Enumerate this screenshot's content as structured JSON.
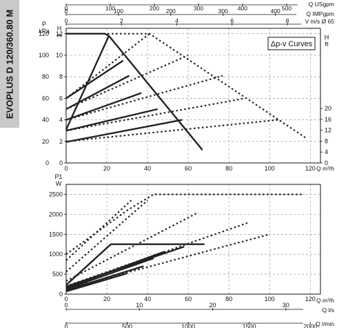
{
  "side_label": "EVOPLUS D 120/360.80 M",
  "legend_label": "Δp-v Curves",
  "chart_data": [
    {
      "type": "line",
      "name": "head",
      "x_unit_label": "Q m³/h",
      "x_range": [
        0,
        125
      ],
      "x_ticks": [
        0,
        20,
        40,
        60,
        80,
        100,
        120
      ],
      "y_label_left": "P kPa",
      "y_label_left2": "H m",
      "y_range_kpa": [
        0,
        125
      ],
      "y_ticks_kpa": [
        0,
        20,
        40,
        60,
        80,
        100,
        120
      ],
      "y_ticks_m": [
        0,
        2,
        4,
        6,
        8,
        10,
        12
      ],
      "y_label_right": "H ft",
      "y_ticks_ft": [
        0,
        4,
        8,
        12,
        16,
        20
      ],
      "top_axes": [
        {
          "label": "Q USgpm",
          "ticks": [
            0,
            100,
            200,
            300,
            400,
            500
          ]
        },
        {
          "label": "Q IMPgpm",
          "ticks": [
            0,
            100,
            200,
            300,
            400
          ]
        },
        {
          "label": "V m/s Ø 65",
          "ticks": [
            0,
            2,
            4,
            6,
            8
          ]
        }
      ],
      "series": [
        {
          "style": "solid",
          "points": [
            [
              0,
              19.5
            ],
            [
              57,
              40
            ]
          ]
        },
        {
          "style": "solid",
          "points": [
            [
              0,
              30
            ],
            [
              45,
              50
            ]
          ]
        },
        {
          "style": "solid",
          "points": [
            [
              0,
              40
            ],
            [
              37,
              65
            ]
          ]
        },
        {
          "style": "solid",
          "points": [
            [
              0,
              50
            ],
            [
              31,
              81
            ]
          ]
        },
        {
          "style": "solid",
          "points": [
            [
              0,
              60
            ],
            [
              28,
              95
            ]
          ]
        },
        {
          "style": "solid",
          "points": [
            [
              0,
              120
            ],
            [
              19,
              120
            ],
            [
              21,
              118
            ],
            [
              67,
              12
            ]
          ]
        },
        {
          "style": "solid",
          "points": [
            [
              0,
              31
            ],
            [
              21,
              118
            ]
          ]
        },
        {
          "style": "dotted",
          "points": [
            [
              0,
              20
            ],
            [
              104,
              40
            ]
          ]
        },
        {
          "style": "dotted",
          "points": [
            [
              0,
              30
            ],
            [
              88,
              60
            ]
          ]
        },
        {
          "style": "dotted",
          "points": [
            [
              0,
              40
            ],
            [
              77,
              81
            ]
          ]
        },
        {
          "style": "dotted",
          "points": [
            [
              0,
              50
            ],
            [
              60,
              100
            ]
          ]
        },
        {
          "style": "dotted",
          "points": [
            [
              0,
              60
            ],
            [
              41,
              120
            ]
          ]
        },
        {
          "style": "dotted",
          "points": [
            [
              0,
              120
            ],
            [
              41,
              120
            ],
            [
              118,
              23
            ]
          ]
        }
      ]
    },
    {
      "type": "line",
      "name": "power",
      "y_label": "P1 W",
      "x_unit_label": "Q m³/h",
      "x_range": [
        0,
        125
      ],
      "x_ticks": [
        0,
        20,
        40,
        60,
        80,
        100,
        120
      ],
      "y_range": [
        0,
        2750
      ],
      "y_ticks": [
        0,
        500,
        1000,
        1500,
        2000,
        2500
      ],
      "bottom_axes": [
        {
          "label": "Q l/s",
          "ticks": [
            0,
            10,
            20,
            30
          ]
        },
        {
          "label": "Q l/min",
          "ticks": [
            0,
            500,
            1000,
            1500,
            2000
          ]
        }
      ],
      "series": [
        {
          "style": "solid",
          "points": [
            [
              0,
              70
            ],
            [
              30,
              520
            ]
          ]
        },
        {
          "style": "solid",
          "points": [
            [
              0,
              100
            ],
            [
              38,
              700
            ]
          ]
        },
        {
          "style": "solid",
          "points": [
            [
              0,
              130
            ],
            [
              43,
              900
            ]
          ]
        },
        {
          "style": "solid",
          "points": [
            [
              0,
              160
            ],
            [
              48,
              1060
            ]
          ]
        },
        {
          "style": "solid",
          "points": [
            [
              0,
              190
            ],
            [
              58,
              1190
            ]
          ]
        },
        {
          "style": "solid",
          "points": [
            [
              0,
              230
            ],
            [
              22,
              1250
            ],
            [
              68,
              1250
            ]
          ]
        },
        {
          "style": "dotted",
          "points": [
            [
              0,
              130
            ],
            [
              100,
              1500
            ]
          ]
        },
        {
          "style": "dotted",
          "points": [
            [
              0,
              200
            ],
            [
              90,
              1800
            ]
          ]
        },
        {
          "style": "dotted",
          "points": [
            [
              0,
              330
            ],
            [
              65,
              2050
            ]
          ]
        },
        {
          "style": "dotted",
          "points": [
            [
              0,
              560
            ],
            [
              40,
              2350
            ]
          ]
        },
        {
          "style": "dotted",
          "points": [
            [
              0,
              850
            ],
            [
              32,
              2350
            ]
          ]
        },
        {
          "style": "dotted",
          "points": [
            [
              0,
              1000
            ],
            [
              30,
              2100
            ],
            [
              43,
              2500
            ],
            [
              117,
              2500
            ]
          ]
        }
      ]
    }
  ]
}
